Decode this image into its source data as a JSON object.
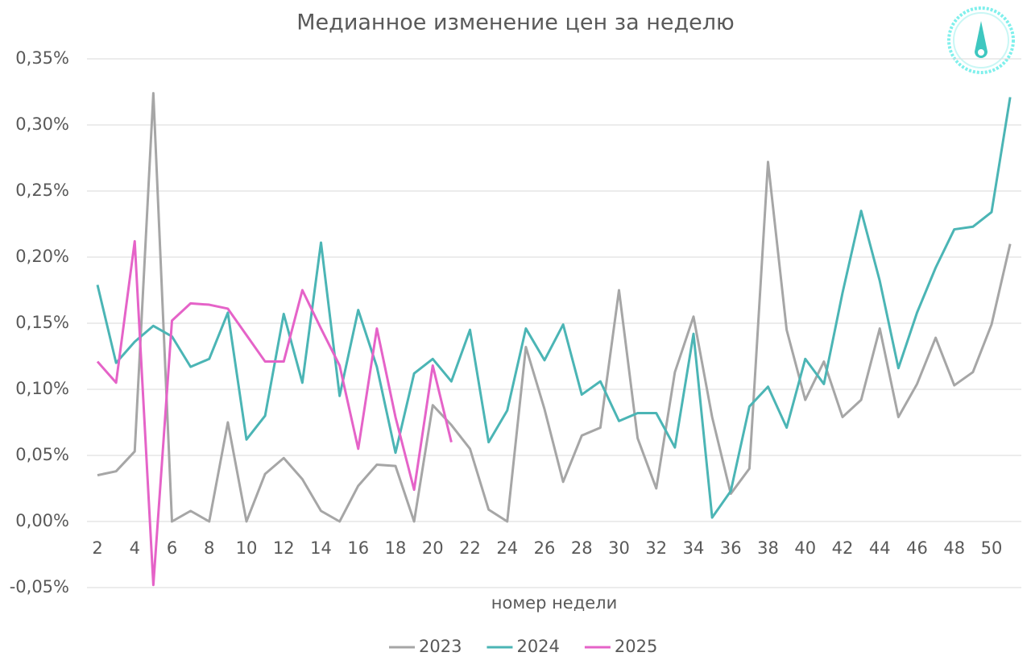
{
  "chart_data": {
    "type": "line",
    "title": "Медианное изменение цен за неделю",
    "x_label": "номер недели",
    "categories": [
      2,
      null,
      4,
      null,
      6,
      null,
      8,
      null,
      10,
      null,
      12,
      null,
      14,
      null,
      16,
      null,
      18,
      null,
      20,
      null,
      22,
      null,
      24,
      null,
      26,
      null,
      28,
      null,
      30,
      null,
      32,
      null,
      34,
      null,
      36,
      null,
      38,
      null,
      40,
      null,
      42,
      null,
      44,
      null,
      46,
      null,
      48,
      null,
      50,
      null
    ],
    "series": [
      {
        "name": "2023",
        "color": "#a6a6a6",
        "values": [
          0.035,
          0.038,
          0.053,
          0.324,
          0.0,
          0.008,
          0.0,
          0.075,
          0.0,
          0.036,
          0.048,
          0.032,
          0.008,
          0.0,
          0.027,
          0.043,
          0.042,
          0.0,
          0.088,
          0.073,
          0.055,
          0.009,
          0.0,
          0.132,
          0.085,
          0.03,
          0.065,
          0.071,
          0.175,
          0.063,
          0.025,
          0.113,
          0.155,
          0.079,
          0.021,
          0.04,
          0.272,
          0.145,
          0.092,
          0.121,
          0.079,
          0.092,
          0.146,
          0.079,
          0.104,
          0.139,
          0.103,
          0.113,
          0.149,
          0.21
        ]
      },
      {
        "name": "2024",
        "color": "#4bb5b5",
        "values": [
          0.179,
          0.12,
          0.136,
          0.148,
          0.14,
          0.117,
          0.123,
          0.158,
          0.062,
          0.08,
          0.157,
          0.105,
          0.211,
          0.095,
          0.16,
          0.117,
          0.052,
          0.112,
          0.123,
          0.106,
          0.145,
          0.06,
          0.084,
          0.146,
          0.122,
          0.149,
          0.096,
          0.106,
          0.076,
          0.082,
          0.082,
          0.056,
          0.142,
          0.003,
          0.023,
          0.087,
          0.102,
          0.071,
          0.123,
          0.104,
          0.173,
          0.235,
          0.182,
          0.116,
          0.158,
          0.192,
          0.221,
          0.223,
          0.234,
          0.321
        ]
      },
      {
        "name": "2025",
        "color": "#e563c8",
        "values": [
          0.121,
          0.105,
          0.212,
          -0.048,
          0.152,
          0.165,
          0.164,
          0.161,
          0.141,
          0.121,
          0.121,
          0.175,
          0.146,
          0.118,
          0.055,
          0.146,
          0.079,
          0.024,
          0.118,
          0.06,
          null,
          null,
          null,
          null,
          null,
          null,
          null,
          null,
          null,
          null,
          null,
          null,
          null,
          null,
          null,
          null,
          null,
          null,
          null,
          null,
          null,
          null,
          null,
          null,
          null,
          null,
          null,
          null,
          null,
          null
        ]
      }
    ],
    "ylim": [
      -0.05,
      0.35
    ],
    "yticks": [
      {
        "value": -0.05,
        "label": "-0,05%"
      },
      {
        "value": 0,
        "label": "0,00%"
      },
      {
        "value": 0.05,
        "label": "0,05%"
      },
      {
        "value": 0.1,
        "label": "0,10%"
      },
      {
        "value": 0.15,
        "label": "0,15%"
      },
      {
        "value": 0.2,
        "label": "0,20%"
      },
      {
        "value": 0.25,
        "label": "0,25%"
      },
      {
        "value": 0.3,
        "label": "0,30%"
      },
      {
        "value": 0.35,
        "label": "0,35%"
      }
    ],
    "grid": true,
    "legend": "bottom"
  }
}
